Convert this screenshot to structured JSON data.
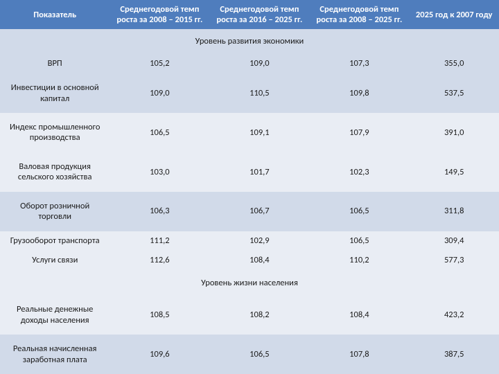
{
  "header": {
    "col1": "Показатель",
    "col2": "Среднегодовой темп роста за 2008 – 2015 гг.",
    "col3": "Среднегодовой темп роста за 2016 – 2025 гг.",
    "col4": "Среднегодовой темп роста за 2008 – 2025 гг.",
    "col5": "2025 год к 2007 году"
  },
  "sections": {
    "s1": "Уровень развития экономики",
    "s2": "Уровень жизни населения"
  },
  "rows": {
    "r1": {
      "label": "ВРП",
      "v1": "105,2",
      "v2": "109,0",
      "v3": "107,3",
      "v4": "355,0"
    },
    "r2": {
      "label": "Инвестиции в основной капитал",
      "v1": "109,0",
      "v2": "110,5",
      "v3": "109,8",
      "v4": "537,5"
    },
    "r3": {
      "label": "Индекс промышленного производства",
      "v1": "106,5",
      "v2": "109,1",
      "v3": "107,9",
      "v4": "391,0"
    },
    "r4": {
      "label": "Валовая продукция сельского хозяйства",
      "v1": "103,0",
      "v2": "101,7",
      "v3": "102,3",
      "v4": "149,5"
    },
    "r5": {
      "label": "Оборот розничной торговли",
      "v1": "106,3",
      "v2": "106,7",
      "v3": "106,5",
      "v4": "311,8"
    },
    "r6": {
      "label": "Грузооборот транспорта",
      "v1": "111,2",
      "v2": "102,9",
      "v3": "106,5",
      "v4": "309,4"
    },
    "r7": {
      "label": "Услуги связи",
      "v1": "112,6",
      "v2": "108,4",
      "v3": "110,2",
      "v4": "577,3"
    },
    "r8": {
      "label": "Реальные денежные доходы населения",
      "v1": "108,5",
      "v2": "108,2",
      "v3": "108,4",
      "v4": "423,2"
    },
    "r9": {
      "label": "Реальная начисленная заработная плата",
      "v1": "109,6",
      "v2": "106,5",
      "v3": "107,8",
      "v4": "387,5"
    }
  },
  "style": {
    "header_bg": "#4f7dbd",
    "row_alt0": "#d1dae9",
    "row_alt1": "#e9edf4",
    "body_gradient_top": "#fce4e4",
    "body_gradient_bottom": "#fef2e0",
    "font_family": "Calibri",
    "font_size_pt": 9.5
  }
}
